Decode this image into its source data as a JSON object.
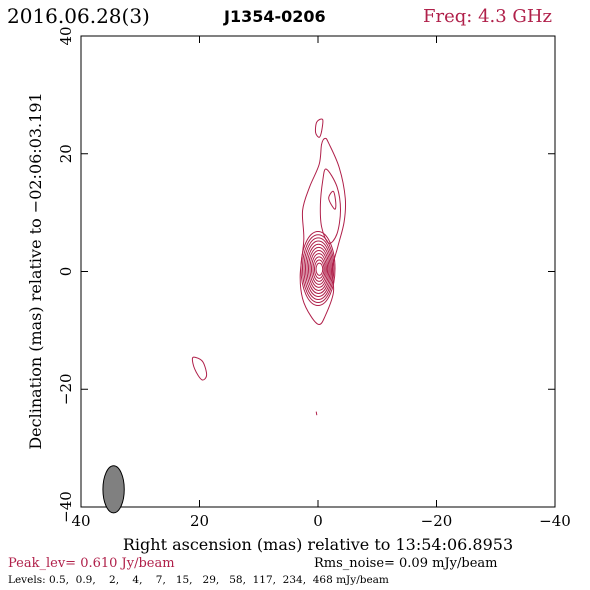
{
  "header": {
    "date": "2016.06.28(3)",
    "source": "J1354-0206",
    "freq": "Freq: 4.3 GHz"
  },
  "footer": {
    "peak": "Peak_lev=  0.610 Jy/beam",
    "rms": "Rms_noise= 0.09 mJy/beam",
    "levels": "Levels: 0.5,  0.9,    2,    4,    7,   15,   29,   58,  117,  234,  468 mJy/beam"
  },
  "colors": {
    "contour": "#b0204a",
    "axis": "#000000",
    "beam_fill": "#808080"
  },
  "chart_data": {
    "type": "contour",
    "title": "J1354-0206",
    "xlabel": "Right ascension (mas) relative to 13:54:06.8953",
    "ylabel": "Declination (mas) relative to −02:06:03.191",
    "xlim": [
      40,
      -40
    ],
    "ylim": [
      -40,
      40
    ],
    "xticks": [
      40,
      20,
      0,
      -20,
      -40
    ],
    "yticks": [
      -40,
      -20,
      0,
      20,
      40
    ],
    "xtick_labels": [
      "40",
      "20",
      "0",
      "−20",
      "−40"
    ],
    "ytick_labels": [
      "−40",
      "−20",
      "0",
      "20",
      "40"
    ],
    "levels_mJy": [
      0.5,
      0.9,
      2,
      4,
      7,
      15,
      29,
      58,
      117,
      234,
      468
    ],
    "peak_Jy_per_beam": 0.61,
    "rms_noise_mJy_per_beam": 0.09,
    "beam": {
      "x": 34.5,
      "y": -37,
      "major_mas": 4.0,
      "minor_mas": 1.8,
      "pa_deg": 0
    },
    "core": {
      "x": 0,
      "y": 0.5,
      "levels": 11
    },
    "jet_contours": [
      {
        "points": [
          [
            -0.8,
            25.8
          ],
          [
            -0.6,
            23.8
          ],
          [
            -0.2,
            22.8
          ],
          [
            0.4,
            23.6
          ],
          [
            0.2,
            25.4
          ]
        ]
      },
      {
        "points": [
          [
            -1.8,
            21.8
          ],
          [
            -3.6,
            17.6
          ],
          [
            -4.6,
            12.4
          ],
          [
            -4.4,
            8.4
          ],
          [
            -3.4,
            4.4
          ],
          [
            -2.4,
            0.4
          ],
          [
            -2.6,
            -3.6
          ],
          [
            -1.2,
            -7.6
          ],
          [
            -0.2,
            -9.0
          ],
          [
            1.2,
            -7.6
          ],
          [
            2.6,
            -4.6
          ],
          [
            3.0,
            -0.6
          ],
          [
            2.4,
            5.4
          ],
          [
            2.6,
            10.4
          ],
          [
            1.4,
            14.4
          ],
          [
            -0.2,
            18.2
          ],
          [
            -0.6,
            21.6
          ],
          [
            -1.2,
            22.6
          ]
        ]
      },
      {
        "points": [
          [
            -1.4,
            17.4
          ],
          [
            -3.2,
            14.4
          ],
          [
            -3.8,
            10.4
          ],
          [
            -3.2,
            6.4
          ],
          [
            -1.8,
            4.8
          ],
          [
            -0.6,
            7.6
          ],
          [
            -0.4,
            11.4
          ],
          [
            -0.8,
            15.4
          ]
        ]
      },
      {
        "points": [
          [
            -1.8,
            12.4
          ],
          [
            -2.8,
            10.6
          ],
          [
            -3.0,
            11.6
          ],
          [
            -2.6,
            13.6
          ]
        ]
      },
      {
        "points": [
          [
            20.6,
            -14.6
          ],
          [
            19.4,
            -15.4
          ],
          [
            18.8,
            -17.6
          ],
          [
            19.6,
            -18.4
          ],
          [
            20.8,
            -16.6
          ],
          [
            21.2,
            -14.8
          ]
        ]
      },
      {
        "points": [
          [
            0.3,
            -23.8
          ],
          [
            0.2,
            -24.4
          ]
        ]
      }
    ]
  }
}
